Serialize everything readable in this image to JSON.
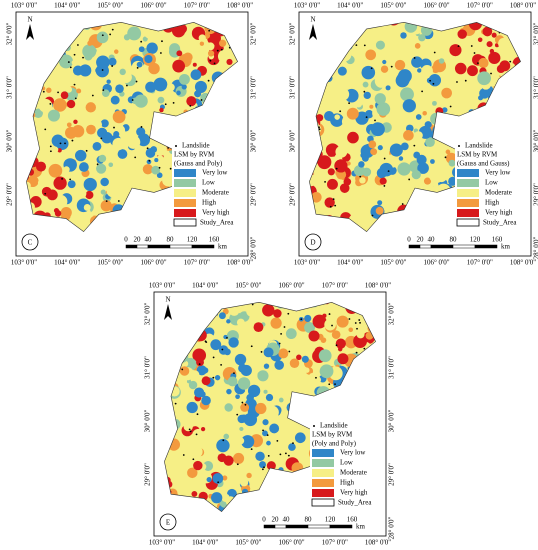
{
  "axis_labels": {
    "longitude": [
      "103° 0'0\"",
      "104° 0'0\"",
      "105° 0'0\"",
      "106° 0'0\"",
      "107° 0'0\"",
      "108° 0'0\""
    ],
    "latitude": [
      "32° 0'0\"",
      "31° 0'0\"",
      "30° 0'0\"",
      "29° 0'0\"",
      "28° 0'0\""
    ]
  },
  "north": "N",
  "legend": {
    "landslide": "Landslide",
    "lsm": "LSM by RVM",
    "study_area": "Study_Area",
    "classes": [
      {
        "name": "Very low",
        "color": "#2f86c8"
      },
      {
        "name": "Low",
        "color": "#93c9a3"
      },
      {
        "name": "Moderate",
        "color": "#f6ef86"
      },
      {
        "name": "High",
        "color": "#f39a3e"
      },
      {
        "name": "Very high",
        "color": "#d7191c"
      }
    ]
  },
  "panels": [
    {
      "letter": "C",
      "model": "(Gauss and Poly)"
    },
    {
      "letter": "D",
      "model": "(Gauss and Gauss)"
    },
    {
      "letter": "E",
      "model": "(Poly and Poly)"
    }
  ],
  "scale": {
    "ticks": [
      "0",
      "20",
      "40",
      "80",
      "120",
      "160"
    ],
    "unit": "km"
  }
}
